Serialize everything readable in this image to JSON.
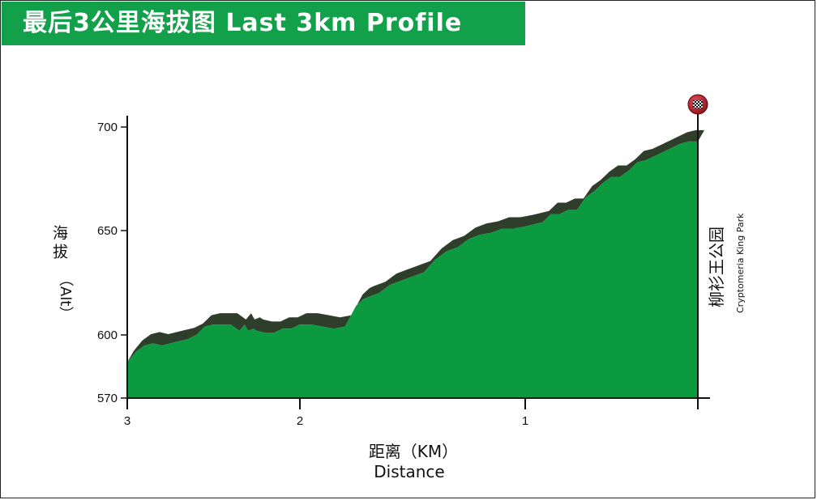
{
  "header": {
    "title": "最后3公里海拔图 Last 3km Profile"
  },
  "finish": {
    "name_cn": "柳衫王公园",
    "name_en": "Cryptomeria King Park",
    "icon": "checkered-flag-icon"
  },
  "colors": {
    "title_bg": "#12a14a",
    "profile_fill": "#0c9a40",
    "profile_shadow": "#2f3d2b",
    "axis": "#111111"
  },
  "chart_data": {
    "type": "area",
    "title": "最后3公里海拔图 Last 3km Profile",
    "xlabel_cn": "距离（KM）",
    "xlabel_en": "Distance",
    "ylabel_cn": "海拔",
    "ylabel_en": "（Alt）",
    "xlim": [
      3,
      0
    ],
    "ylim": [
      570,
      700
    ],
    "x_ticks": [
      3,
      2,
      1
    ],
    "y_ticks": [
      570,
      600,
      650,
      700
    ],
    "series": [
      {
        "x": [
          3.0,
          2.95,
          2.9,
          2.85,
          2.8,
          2.75,
          2.7,
          2.65,
          2.6,
          2.55,
          2.5,
          2.45,
          2.4,
          2.35,
          2.32,
          2.3,
          2.27,
          2.25,
          2.2,
          2.15,
          2.1,
          2.05,
          2.0,
          1.95,
          1.9,
          1.85,
          1.8,
          1.75,
          1.72,
          1.7,
          1.65,
          1.6,
          1.55,
          1.5,
          1.45,
          1.4,
          1.35,
          1.3,
          1.25,
          1.2,
          1.15,
          1.1,
          1.05,
          1.0,
          0.95,
          0.9,
          0.85,
          0.8,
          0.75,
          0.7,
          0.65,
          0.6,
          0.55,
          0.5,
          0.45,
          0.4,
          0.35,
          0.3,
          0.25,
          0.2,
          0.15,
          0.1,
          0.05,
          0.0
        ],
        "values": [
          587,
          592,
          595,
          596,
          595,
          596,
          597,
          598,
          600,
          604,
          605,
          605,
          605,
          602,
          605,
          602,
          603,
          602,
          601,
          601,
          603,
          603,
          605,
          605,
          604,
          603,
          604,
          614,
          617,
          618,
          620,
          624,
          626,
          628,
          630,
          636,
          640,
          642,
          646,
          648,
          649,
          651,
          651,
          652,
          653,
          654,
          658,
          658,
          660,
          660,
          666,
          669,
          673,
          676,
          676,
          679,
          683,
          684,
          686,
          688,
          690,
          692,
          693,
          693
        ]
      }
    ]
  }
}
